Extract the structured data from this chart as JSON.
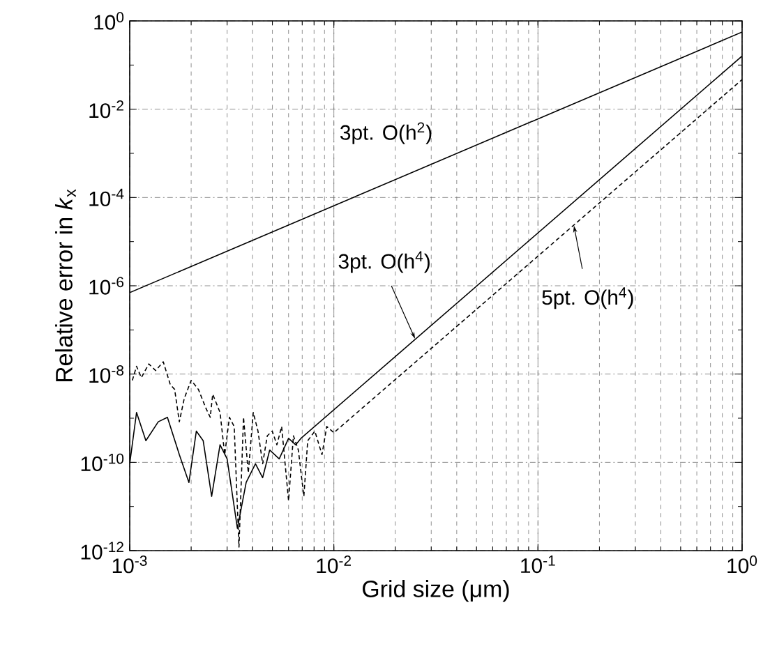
{
  "chart_data": {
    "type": "line",
    "log": "xy",
    "grid": true,
    "xlabel": "Grid size (μm)",
    "ylabel": "Relative error in *k*$_{x}$",
    "xlim": [
      0.001,
      1
    ],
    "ylim": [
      1e-12,
      1
    ],
    "xticks": [
      {
        "value": 0.001,
        "label": "10$^{-3}$"
      },
      {
        "value": 0.01,
        "label": "10$^{-2}$"
      },
      {
        "value": 0.1,
        "label": "10$^{-1}$"
      },
      {
        "value": 1,
        "label": "10$^{0}$"
      }
    ],
    "yticks": [
      {
        "value": 1e-12,
        "label": "10$^{-12}$"
      },
      {
        "value": 1e-10,
        "label": "10$^{-10}$"
      },
      {
        "value": 1e-08,
        "label": "10$^{-8}$"
      },
      {
        "value": 1e-06,
        "label": "10$^{-6}$"
      },
      {
        "value": 0.0001,
        "label": "10$^{-4}$"
      },
      {
        "value": 0.01,
        "label": "10$^{-2}$"
      },
      {
        "value": 1,
        "label": "10$^{0}$"
      }
    ],
    "series": [
      {
        "color": "#000000",
        "line_style": "solid",
        "x": [
          0.001,
          1
        ],
        "values": [
          7e-07,
          0.56
        ]
      },
      {
        "color": "#000000",
        "line_style": "solid",
        "x": [
          0.001,
          0.00108,
          0.0012,
          0.00138,
          0.00153,
          0.00175,
          0.00195,
          0.00212,
          0.00229,
          0.00252,
          0.00277,
          0.003,
          0.00337,
          0.00372,
          0.00413,
          0.00448,
          0.00485,
          0.0054,
          0.006,
          0.0065,
          0.0069,
          1
        ],
        "values": [
          9.3e-11,
          1.35e-09,
          3.1e-10,
          8.3e-10,
          1.05e-09,
          1.5e-10,
          3.5e-11,
          5.1e-10,
          3.1e-10,
          1.7e-11,
          2.5e-10,
          1.2e-10,
          3.2e-12,
          3.5e-11,
          9.3e-11,
          4.5e-11,
          1.9e-10,
          1.2e-10,
          3.5e-10,
          2.5e-10,
          3.5e-10,
          0.16
        ]
      },
      {
        "color": "#000000",
        "line_style": "dashed",
        "x": [
          0.00103,
          0.00108,
          0.00114,
          0.00124,
          0.00134,
          0.00146,
          0.00158,
          0.00166,
          0.00175,
          0.00185,
          0.002,
          0.00217,
          0.00236,
          0.00248,
          0.00255,
          0.00277,
          0.00292,
          0.00308,
          0.00325,
          0.00343,
          0.00361,
          0.00381,
          0.00403,
          0.00425,
          0.00448,
          0.00472,
          0.00499,
          0.00526,
          0.00555,
          0.006,
          0.00634,
          0.0067,
          0.00713,
          0.00745,
          0.00807,
          0.00875,
          0.00923,
          0.01,
          1
        ],
        "values": [
          7.2e-09,
          1.5e-08,
          8.3e-09,
          1.7e-08,
          1.2e-08,
          1.9e-08,
          5.8e-09,
          4.5e-09,
          8.3e-10,
          2.8e-09,
          7.2e-09,
          4.5e-09,
          1.7e-09,
          1.05e-09,
          3.5e-09,
          1.35e-09,
          1.5e-10,
          1.05e-09,
          6.5e-10,
          1.2e-12,
          1.05e-09,
          5.8e-11,
          1.35e-09,
          5.1e-10,
          9.3e-11,
          4e-10,
          5.1e-10,
          2.5e-10,
          6.5e-10,
          1.35e-11,
          4e-10,
          1.9e-10,
          1.7e-11,
          3.1e-10,
          5.1e-10,
          1.5e-10,
          6.5e-10,
          4.7e-10,
          0.047
        ]
      }
    ],
    "annotations": [
      {
        "text": "3pt. O(h$^{2}$)",
        "x": 0.028,
        "y": 0.0005
      },
      {
        "text": "3pt. O(h$^{4}$)",
        "x": 0.025,
        "y": 6.3e-08
      },
      {
        "text": "5pt. O(h$^{4}$)",
        "x": 0.15,
        "y": 2.3e-05
      }
    ]
  }
}
